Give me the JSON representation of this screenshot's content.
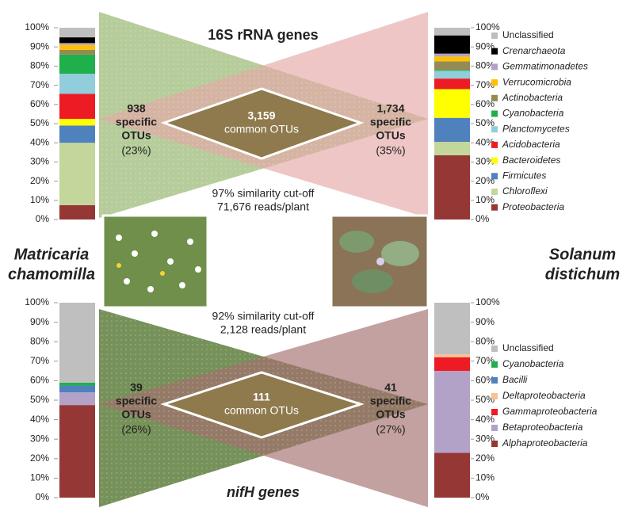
{
  "chart_data": [
    {
      "type": "bar",
      "stacked": true,
      "title": "16S rRNA genes",
      "ylim": [
        0,
        100
      ],
      "yticks": [
        {
          "value": 0,
          "label": "0%"
        },
        {
          "value": 10,
          "label": "10%"
        },
        {
          "value": 20,
          "label": "20%"
        },
        {
          "value": 30,
          "label": "30%"
        },
        {
          "value": 40,
          "label": "40%"
        },
        {
          "value": 50,
          "label": "50%"
        },
        {
          "value": 60,
          "label": "60%"
        },
        {
          "value": 70,
          "label": "70%"
        },
        {
          "value": 80,
          "label": "80%"
        },
        {
          "value": 90,
          "label": "90%"
        },
        {
          "value": 100,
          "label": "100%"
        }
      ],
      "series": [
        {
          "name": "Proteobacteria",
          "color": "#953735",
          "italic": true,
          "values": [
            7.5,
            33.5
          ]
        },
        {
          "name": "Chloroflexi",
          "color": "#c3d69b",
          "italic": true,
          "values": [
            32.5,
            7
          ]
        },
        {
          "name": "Firmicutes",
          "color": "#4f81bd",
          "italic": true,
          "values": [
            9,
            12.5
          ]
        },
        {
          "name": "Bacteroidetes",
          "color": "#ffff00",
          "italic": true,
          "values": [
            3.5,
            15
          ]
        },
        {
          "name": "Acidobacteria",
          "color": "#ed1c24",
          "italic": true,
          "values": [
            13,
            5.5
          ]
        },
        {
          "name": "Planctomycetes",
          "color": "#92cddc",
          "italic": true,
          "values": [
            10.5,
            4
          ]
        },
        {
          "name": "Cyanobacteria",
          "color": "#1faf4b",
          "italic": true,
          "values": [
            10,
            0.5
          ]
        },
        {
          "name": "Actinobacteria",
          "color": "#948a54",
          "italic": true,
          "values": [
            2.5,
            4.5
          ]
        },
        {
          "name": "Verrucomicrobia",
          "color": "#ffc000",
          "italic": true,
          "values": [
            2.5,
            2.5
          ]
        },
        {
          "name": "Gemmatimonadetes",
          "color": "#b3a2c7",
          "italic": true,
          "values": [
            1,
            1.5
          ]
        },
        {
          "name": "Crenarchaeota",
          "color": "#000000",
          "italic": true,
          "values": [
            3,
            9.5
          ]
        },
        {
          "name": "Unclassified",
          "color": "#bfbfbf",
          "italic": false,
          "values": [
            5,
            4
          ]
        }
      ]
    },
    {
      "type": "bar",
      "stacked": true,
      "title": "nifH genes",
      "ylim": [
        0,
        100
      ],
      "yticks": [
        {
          "value": 0,
          "label": "0%"
        },
        {
          "value": 10,
          "label": "10%"
        },
        {
          "value": 20,
          "label": "20%"
        },
        {
          "value": 30,
          "label": "30%"
        },
        {
          "value": 40,
          "label": "40%"
        },
        {
          "value": 50,
          "label": "50%"
        },
        {
          "value": 60,
          "label": "60%"
        },
        {
          "value": 70,
          "label": "70%"
        },
        {
          "value": 80,
          "label": "80%"
        },
        {
          "value": 90,
          "label": "90%"
        },
        {
          "value": 100,
          "label": "100%"
        }
      ],
      "series": [
        {
          "name": "Alphaproteobacteria",
          "color": "#953735",
          "italic": true,
          "values": [
            47.5,
            23
          ]
        },
        {
          "name": "Betaproteobacteria",
          "color": "#b3a2c7",
          "italic": true,
          "values": [
            6.5,
            42
          ]
        },
        {
          "name": "Gammaproteobacteria",
          "color": "#ed1c24",
          "italic": true,
          "values": [
            0,
            7
          ]
        },
        {
          "name": "Deltaproteobacteria",
          "color": "#fac090",
          "italic": true,
          "values": [
            0,
            1.5
          ]
        },
        {
          "name": "Bacilli",
          "color": "#4f81bd",
          "italic": true,
          "values": [
            3.5,
            0
          ]
        },
        {
          "name": "Cyanobacteria",
          "color": "#1faf4b",
          "italic": true,
          "values": [
            1.5,
            0
          ]
        },
        {
          "name": "Unclassified",
          "color": "#bfbfbf",
          "italic": false,
          "values": [
            41,
            26.5
          ]
        }
      ]
    }
  ],
  "diagram": [
    {
      "left": {
        "count": "938",
        "lines": [
          "specific",
          "OTUs"
        ],
        "percent": "(23%)"
      },
      "right": {
        "count": "1,734",
        "lines": [
          "specific",
          "OTUs"
        ],
        "percent": "(35%)"
      },
      "common": {
        "count": "3,159",
        "label": "common OTUs"
      },
      "cutoff": [
        "97% similarity cut-off",
        "71,676 reads/plant"
      ]
    },
    {
      "left": {
        "count": "39",
        "lines": [
          "specific",
          "OTUs"
        ],
        "percent": "(26%)"
      },
      "right": {
        "count": "41",
        "lines": [
          "specific",
          "OTUs"
        ],
        "percent": "(27%)"
      },
      "common": {
        "count": "111",
        "label": "common OTUs"
      },
      "cutoff": [
        "92% similarity cut-off",
        "2,128 reads/plant"
      ]
    }
  ],
  "plants": [
    [
      "Matricaria",
      "chamomilla"
    ],
    [
      "Solanum",
      "distichum"
    ]
  ]
}
